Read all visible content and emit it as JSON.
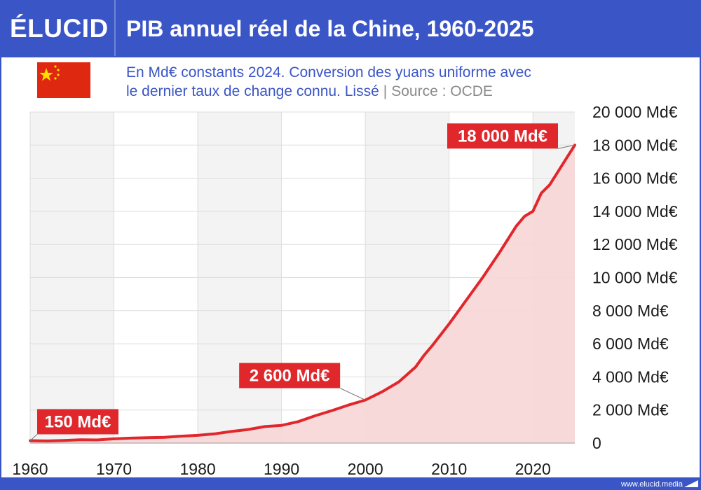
{
  "brand": {
    "logo": "ÉLUCID",
    "footer_url": "www.elucid.media"
  },
  "header": {
    "title": "PIB annuel réel de la Chine, 1960-2025"
  },
  "subtitle": {
    "line1": "En Md€ constants 2024. Conversion des yuans uniforme avec",
    "line2": "le dernier taux de change connu. Lissé",
    "separator": "|",
    "source": "Source : OCDE"
  },
  "flag": {
    "country": "Chine",
    "icon": "china-flag-icon"
  },
  "colors": {
    "brand_blue": "#3a55c6",
    "line_red": "#e0272c",
    "area_fill": "#f7d6d6",
    "callout_bg": "#e0272c",
    "band_gray": "#f3f3f3"
  },
  "chart_data": {
    "type": "area",
    "title": "PIB annuel réel de la Chine, 1960-2025",
    "xlabel": "",
    "ylabel": "",
    "xlim": [
      1960,
      2025
    ],
    "ylim": [
      0,
      20000
    ],
    "grid": true,
    "x_ticks": [
      "1960",
      "1970",
      "1980",
      "1990",
      "2000",
      "2010",
      "2020"
    ],
    "y_ticks": [
      "0",
      "2 000 Md€",
      "4 000 Md€",
      "6 000 Md€",
      "8 000 Md€",
      "10 000 Md€",
      "12 000 Md€",
      "14 000 Md€",
      "16 000 Md€",
      "18 000 Md€",
      "20 000 Md€"
    ],
    "series": [
      {
        "x": [
          1960,
          1962,
          1964,
          1966,
          1968,
          1970,
          1972,
          1974,
          1976,
          1978,
          1980,
          1982,
          1984,
          1986,
          1988,
          1990,
          1992,
          1994,
          1996,
          1998,
          2000,
          2002,
          2004,
          2006,
          2007,
          2008,
          2010,
          2012,
          2014,
          2016,
          2018,
          2019,
          2020,
          2021,
          2022,
          2023,
          2024,
          2025
        ],
        "values": [
          150,
          130,
          160,
          200,
          190,
          260,
          300,
          330,
          350,
          420,
          470,
          560,
          700,
          820,
          1000,
          1070,
          1300,
          1650,
          1960,
          2300,
          2600,
          3100,
          3700,
          4600,
          5300,
          5900,
          7200,
          8600,
          10000,
          11500,
          13100,
          13700,
          14000,
          15100,
          15600,
          16400,
          17200,
          18000
        ]
      }
    ],
    "annotations": [
      {
        "x": 1960,
        "y": 150,
        "label": "150 Md€"
      },
      {
        "x": 2000,
        "y": 2600,
        "label": "2 600 Md€"
      },
      {
        "x": 2025,
        "y": 18000,
        "label": "18 000 Md€"
      }
    ]
  }
}
